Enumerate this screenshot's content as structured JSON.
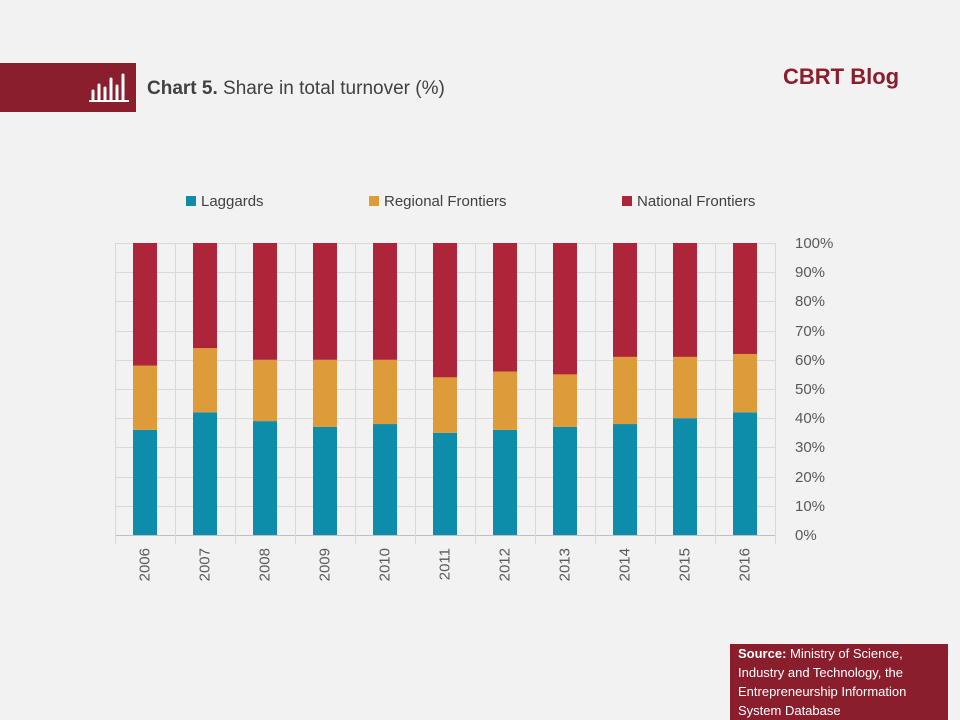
{
  "header": {
    "chart_label": "Chart 5.",
    "brand": "CBRT Blog",
    "icon": "bar-chart-icon"
  },
  "colors": {
    "brand": "#8b1e2d",
    "background": "#f2f2f2",
    "gridline": "#d9d9d9",
    "axis_text": "#595959"
  },
  "chart_data": {
    "type": "bar",
    "stacked": true,
    "title": "Share in total turnover (%)",
    "xlabel": "",
    "ylabel": "",
    "categories": [
      "2006",
      "2007",
      "2008",
      "2009",
      "2010",
      "2011",
      "2012",
      "2013",
      "2014",
      "2015",
      "2016"
    ],
    "series": [
      {
        "name": "Laggards",
        "color": "#0e8dab",
        "values": [
          36,
          42,
          39,
          37,
          38,
          35,
          36,
          37,
          38,
          40,
          42
        ]
      },
      {
        "name": "Regional Frontiers",
        "color": "#de9b39",
        "values": [
          22,
          22,
          21,
          23,
          22,
          19,
          20,
          18,
          23,
          21,
          20
        ]
      },
      {
        "name": "National Frontiers",
        "color": "#ae2438",
        "values": [
          42,
          36,
          40,
          40,
          40,
          46,
          44,
          45,
          39,
          39,
          38
        ]
      }
    ],
    "ylim": [
      0,
      100
    ],
    "yticks": [
      "0%",
      "10%",
      "20%",
      "30%",
      "40%",
      "50%",
      "60%",
      "70%",
      "80%",
      "90%",
      "100%"
    ],
    "grid": true,
    "legend": "top"
  },
  "source": {
    "label": "Source:",
    "text": "Ministry of Science, Industry and Technology, the Entrepreneurship Information System Database"
  }
}
